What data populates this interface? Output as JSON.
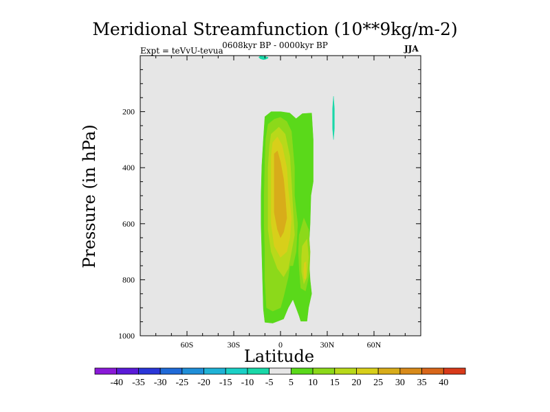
{
  "chart_data": {
    "type": "heatmap",
    "title": "Meridional Streamfunction (10**9kg/m-2)",
    "subtitle": "0608kyr BP - 0000kyr BP",
    "left_label": "Expt = teVvU-tevua",
    "right_label": "JJA",
    "xlabel": "Latitude",
    "ylabel": "Pressure (in hPa)",
    "xlim": [
      -90,
      90
    ],
    "ylim": [
      1000,
      0
    ],
    "x_ticks": [
      {
        "value": -60,
        "label": "60S"
      },
      {
        "value": -30,
        "label": "30S"
      },
      {
        "value": 0,
        "label": "0"
      },
      {
        "value": 30,
        "label": "30N"
      },
      {
        "value": 60,
        "label": "60N"
      }
    ],
    "y_ticks": [
      {
        "value": 200,
        "label": "200"
      },
      {
        "value": 400,
        "label": "400"
      },
      {
        "value": 600,
        "label": "600"
      },
      {
        "value": 800,
        "label": "800"
      },
      {
        "value": 1000,
        "label": "1000"
      }
    ],
    "background_color": "#e6e6e6",
    "colorbar": {
      "labels": [
        "-40",
        "-35",
        "-30",
        "-25",
        "-20",
        "-15",
        "-10",
        "-5",
        "5",
        "10",
        "15",
        "20",
        "25",
        "30",
        "35",
        "40"
      ],
      "colors": [
        "#8a19d8",
        "#5a1ad8",
        "#2a36d8",
        "#1f6ad8",
        "#1f8ed8",
        "#1fb2d6",
        "#1ad0c6",
        "#19d8a8",
        "#e6e6e6",
        "#5ad91a",
        "#8cd91a",
        "#b8d91a",
        "#d8cf1a",
        "#d8ac1a",
        "#d88a1a",
        "#d8661a",
        "#d83a1a"
      ]
    },
    "contours": [
      {
        "level": -5,
        "color": "#19d8a8",
        "points": [
          [
            -13,
            1.5
          ],
          [
            -10,
            3
          ],
          [
            -8,
            6
          ],
          [
            -8,
            9
          ],
          [
            -9.5,
            13
          ],
          [
            -11,
            14.5
          ],
          [
            -13,
            11
          ],
          [
            -14,
            6
          ]
        ]
      },
      {
        "level": -5,
        "color": "#19d8a8",
        "points": [
          [
            34,
            145
          ],
          [
            34.6,
            190
          ],
          [
            34.6,
            260
          ],
          [
            34,
            300
          ],
          [
            33.4,
            260
          ],
          [
            33.4,
            190
          ]
        ]
      },
      {
        "level": 5,
        "color": "#5ad91a",
        "points": [
          [
            -12,
            395
          ],
          [
            -11,
            300
          ],
          [
            -10,
            218
          ],
          [
            -6,
            200
          ],
          [
            0,
            200
          ],
          [
            6,
            205
          ],
          [
            10,
            225
          ],
          [
            14,
            207
          ],
          [
            20,
            205
          ],
          [
            21,
            300
          ],
          [
            21,
            450
          ],
          [
            19.5,
            500
          ],
          [
            19,
            600
          ],
          [
            18,
            700
          ],
          [
            19,
            800
          ],
          [
            20,
            850
          ],
          [
            18,
            900
          ],
          [
            17,
            948
          ],
          [
            13,
            948
          ],
          [
            12,
            930
          ],
          [
            10,
            900
          ],
          [
            8,
            870
          ],
          [
            5,
            900
          ],
          [
            2,
            940
          ],
          [
            -5,
            955
          ],
          [
            -10,
            952
          ],
          [
            -11,
            905
          ],
          [
            -11.5,
            800
          ],
          [
            -12,
            700
          ],
          [
            -12.5,
            600
          ],
          [
            -12.5,
            500
          ]
        ]
      },
      {
        "level": 10,
        "color": "#8cd91a",
        "points": [
          [
            -8,
            245
          ],
          [
            -4,
            227
          ],
          [
            0,
            220
          ],
          [
            4,
            235
          ],
          [
            7,
            270
          ],
          [
            9,
            400
          ],
          [
            9,
            500
          ],
          [
            11,
            600
          ],
          [
            10,
            700
          ],
          [
            8,
            750
          ],
          [
            6,
            750
          ],
          [
            5,
            790
          ],
          [
            2,
            860
          ],
          [
            0,
            900
          ],
          [
            -5,
            912
          ],
          [
            -9,
            900
          ],
          [
            -10,
            800
          ],
          [
            -10,
            700
          ],
          [
            -10.5,
            600
          ],
          [
            -10.5,
            500
          ],
          [
            -10,
            380
          ],
          [
            -9.5,
            300
          ]
        ]
      },
      {
        "level": 10,
        "color": "#8cd91a",
        "points": [
          [
            12,
            640
          ],
          [
            15,
            580
          ],
          [
            18,
            620
          ],
          [
            19,
            700
          ],
          [
            18.5,
            780
          ],
          [
            16,
            840
          ],
          [
            13,
            830
          ],
          [
            12,
            760
          ],
          [
            11.5,
            700
          ]
        ]
      },
      {
        "level": 15,
        "color": "#b8d91a",
        "points": [
          [
            -6,
            280
          ],
          [
            -1,
            255
          ],
          [
            3,
            280
          ],
          [
            6,
            360
          ],
          [
            7,
            450
          ],
          [
            8,
            550
          ],
          [
            9,
            640
          ],
          [
            7,
            700
          ],
          [
            5,
            760
          ],
          [
            2,
            790
          ],
          [
            -2,
            760
          ],
          [
            -6,
            700
          ],
          [
            -8,
            620
          ],
          [
            -8,
            500
          ],
          [
            -8,
            400
          ],
          [
            -7,
            320
          ]
        ]
      },
      {
        "level": 15,
        "color": "#b8d91a",
        "points": [
          [
            14,
            680
          ],
          [
            17,
            655
          ],
          [
            18,
            720
          ],
          [
            17,
            790
          ],
          [
            15,
            815
          ],
          [
            13.5,
            770
          ],
          [
            13.5,
            720
          ]
        ]
      },
      {
        "level": 20,
        "color": "#d8cf1a",
        "points": [
          [
            -5,
            310
          ],
          [
            -2,
            290
          ],
          [
            1,
            320
          ],
          [
            4,
            400
          ],
          [
            5,
            480
          ],
          [
            7,
            580
          ],
          [
            6,
            650
          ],
          [
            4,
            700
          ],
          [
            0,
            720
          ],
          [
            -4,
            680
          ],
          [
            -6,
            600
          ],
          [
            -6,
            500
          ],
          [
            -6,
            420
          ],
          [
            -6,
            360
          ]
        ]
      },
      {
        "level": 20,
        "color": "#d8cf1a",
        "points": [
          [
            15.2,
            740
          ],
          [
            16.4,
            735
          ],
          [
            16.6,
            770
          ],
          [
            16,
            800
          ],
          [
            15.2,
            795
          ],
          [
            14.8,
            770
          ]
        ]
      },
      {
        "level": 25,
        "color": "#d8ac1a",
        "points": [
          [
            -4,
            350
          ],
          [
            -2,
            340
          ],
          [
            0,
            380
          ],
          [
            2,
            440
          ],
          [
            3,
            500
          ],
          [
            4,
            580
          ],
          [
            2,
            630
          ],
          [
            0,
            650
          ],
          [
            -2,
            620
          ],
          [
            -4,
            560
          ],
          [
            -4,
            480
          ],
          [
            -4,
            420
          ]
        ]
      }
    ]
  }
}
